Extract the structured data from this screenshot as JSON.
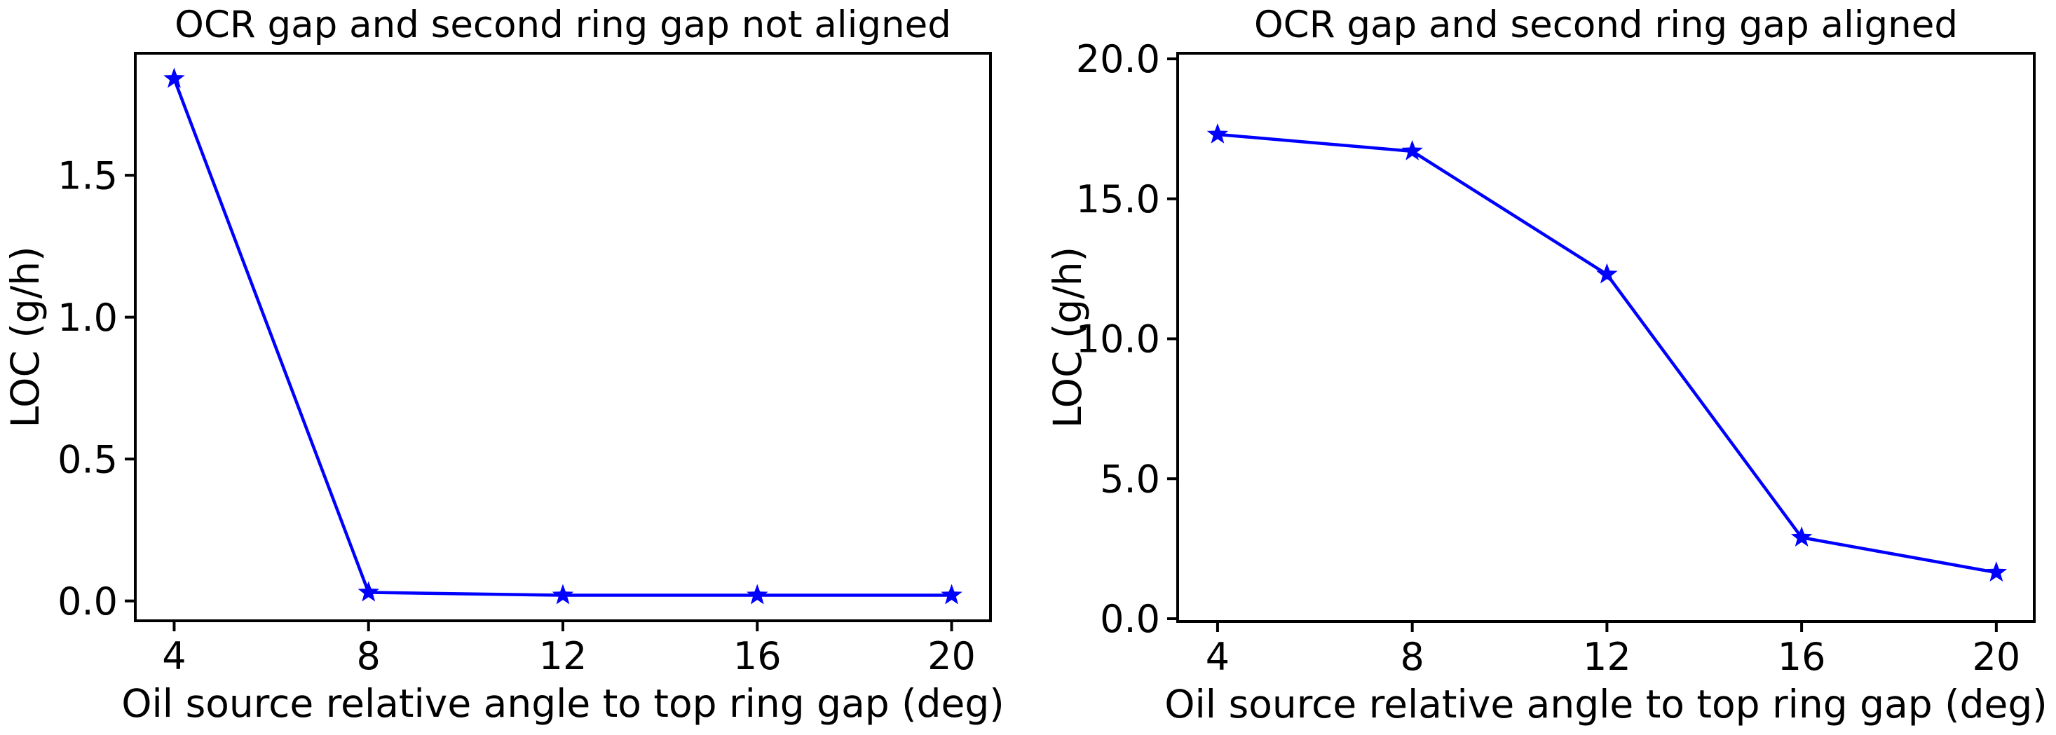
{
  "figure": {
    "background": "#ffffff",
    "axis_color": "#000000",
    "text_color": "#000000",
    "accent_color": "#0000ff"
  },
  "chart_data": [
    {
      "type": "line",
      "title": "OCR gap and second ring gap not aligned",
      "xlabel": "Oil source relative angle to top ring gap (deg)",
      "ylabel": "LOC (g/h)",
      "legend": null,
      "grid": false,
      "marker": "star",
      "line_color": "#0000ff",
      "x": [
        4,
        8,
        12,
        16,
        20
      ],
      "y": [
        1.84,
        0.03,
        0.02,
        0.02,
        0.02
      ],
      "xlim": [
        3.2,
        20.8
      ],
      "ylim": [
        -0.07,
        1.93
      ],
      "xticks": [
        4,
        8,
        12,
        16,
        20
      ],
      "xtick_labels": [
        "4",
        "8",
        "12",
        "16",
        "20"
      ],
      "yticks": [
        0.0,
        0.5,
        1.0,
        1.5
      ],
      "ytick_labels": [
        "0.0",
        "0.5",
        "1.0",
        "1.5"
      ]
    },
    {
      "type": "line",
      "title": "OCR gap and second ring gap aligned",
      "xlabel": "Oil source relative angle to top ring gap (deg)",
      "ylabel": "LOC (g/h)",
      "legend": null,
      "grid": false,
      "marker": "star",
      "line_color": "#0000ff",
      "x": [
        4,
        8,
        12,
        16,
        20
      ],
      "y": [
        17.3,
        16.7,
        12.3,
        2.9,
        1.65
      ],
      "xlim": [
        3.18,
        20.78
      ],
      "ylim": [
        -0.1,
        20.2
      ],
      "xticks": [
        4,
        8,
        12,
        16,
        20
      ],
      "xtick_labels": [
        "4",
        "8",
        "12",
        "16",
        "20"
      ],
      "yticks": [
        0.0,
        5.0,
        10.0,
        15.0,
        20.0
      ],
      "ytick_labels": [
        "0.0",
        "5.0",
        "10.0",
        "15.0",
        "20.0"
      ]
    }
  ]
}
